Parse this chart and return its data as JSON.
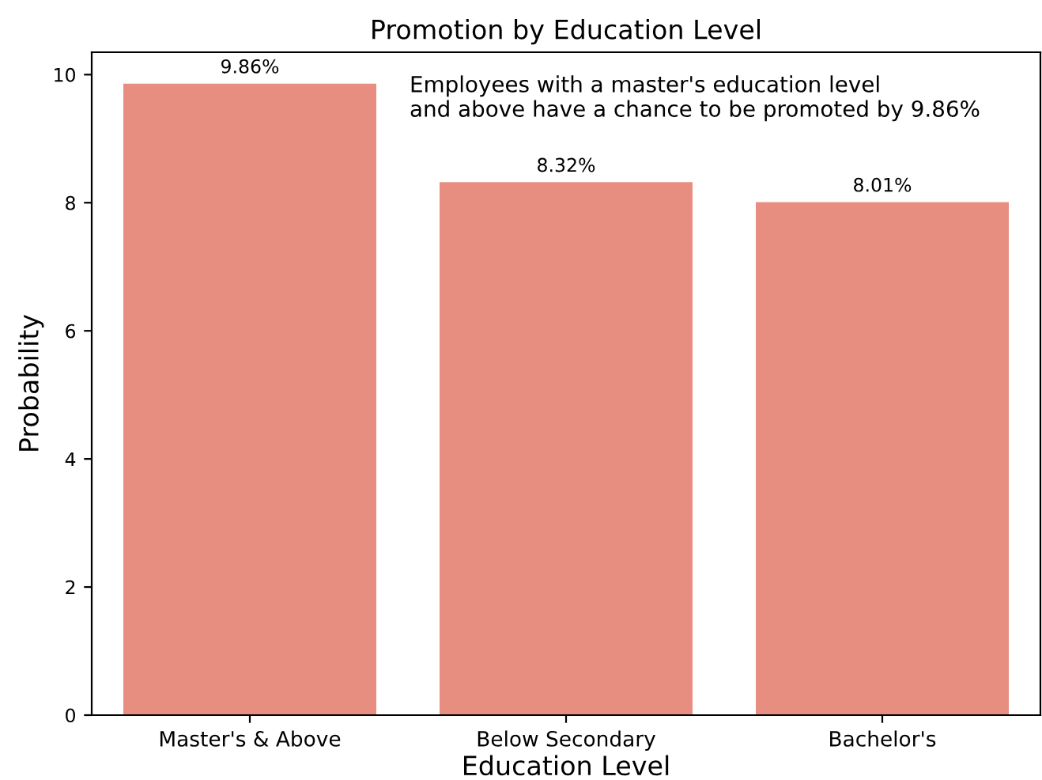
{
  "chart_data": {
    "type": "bar",
    "title": "Promotion by Education Level",
    "xlabel": "Education Level",
    "ylabel": "Probability",
    "categories": [
      "Master's & Above",
      "Below Secondary",
      "Bachelor's"
    ],
    "values": [
      9.86,
      8.32,
      8.01
    ],
    "value_labels": [
      "9.86%",
      "8.32%",
      "8.01%"
    ],
    "color": "#e88e81",
    "ylim": [
      0,
      10.35
    ],
    "yticks": [
      0,
      2,
      4,
      6,
      8,
      10
    ],
    "grid": false,
    "legend": false,
    "annotations": [
      "Employees with a master's education level\nand above have a chance to be promoted by 9.86%"
    ]
  }
}
